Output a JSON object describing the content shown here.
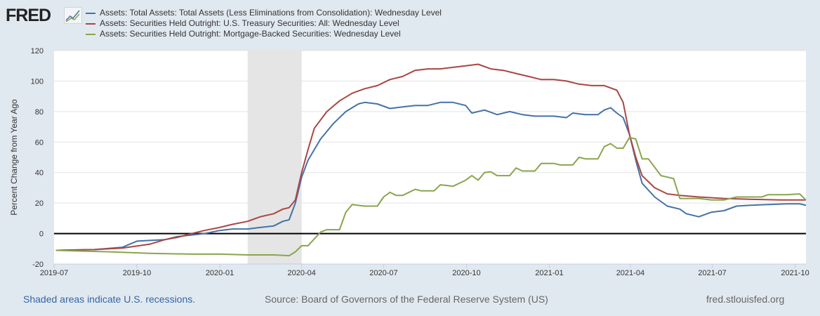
{
  "header": {
    "logo": "FRED"
  },
  "footer": {
    "recession_note": "Shaded areas indicate U.S. recessions.",
    "source": "Source: Board of Governors of the Federal Reserve System (US)",
    "site": "fred.stlouisfed.org"
  },
  "chart_data": {
    "type": "line",
    "title": "",
    "ylabel": "Percent Change from Year Ago",
    "xlabel": "",
    "ylim": [
      -20,
      120
    ],
    "yticks": [
      -20,
      0,
      20,
      40,
      60,
      80,
      100,
      120
    ],
    "xticks": [
      "2019-07",
      "2019-10",
      "2020-01",
      "2020-04",
      "2020-07",
      "2020-10",
      "2021-01",
      "2021-04",
      "2021-07",
      "2021-10"
    ],
    "xlim": [
      "2019-07-01",
      "2021-10-13"
    ],
    "grid": true,
    "legend_placement": "top",
    "recessions": [
      {
        "start": "2020-02-01",
        "end": "2020-04-01"
      }
    ],
    "series": [
      {
        "name": "Assets: Total Assets: Total Assets (Less Eliminations from Consolidation): Wednesday Level",
        "color": "#4572a7",
        "points": [
          [
            "2019-07-03",
            -11
          ],
          [
            "2019-08-15",
            -10.5
          ],
          [
            "2019-09-15",
            -9
          ],
          [
            "2019-10-01",
            -5
          ],
          [
            "2019-11-01",
            -4
          ],
          [
            "2019-11-15",
            -2
          ],
          [
            "2019-12-15",
            0
          ],
          [
            "2020-01-01",
            2
          ],
          [
            "2020-01-15",
            3
          ],
          [
            "2020-02-01",
            3
          ],
          [
            "2020-02-15",
            4
          ],
          [
            "2020-03-01",
            5
          ],
          [
            "2020-03-11",
            8
          ],
          [
            "2020-03-18",
            9
          ],
          [
            "2020-03-25",
            20
          ],
          [
            "2020-04-01",
            37
          ],
          [
            "2020-04-08",
            48
          ],
          [
            "2020-04-22",
            62
          ],
          [
            "2020-05-06",
            72
          ],
          [
            "2020-05-20",
            80
          ],
          [
            "2020-06-03",
            85
          ],
          [
            "2020-06-10",
            86
          ],
          [
            "2020-06-24",
            85
          ],
          [
            "2020-07-08",
            82
          ],
          [
            "2020-07-22",
            83
          ],
          [
            "2020-08-05",
            84
          ],
          [
            "2020-08-19",
            84
          ],
          [
            "2020-09-02",
            86
          ],
          [
            "2020-09-16",
            86
          ],
          [
            "2020-09-30",
            84
          ],
          [
            "2020-10-07",
            79
          ],
          [
            "2020-10-21",
            81
          ],
          [
            "2020-11-04",
            78
          ],
          [
            "2020-11-18",
            80
          ],
          [
            "2020-12-02",
            78
          ],
          [
            "2020-12-16",
            77
          ],
          [
            "2021-01-06",
            77
          ],
          [
            "2021-01-20",
            76
          ],
          [
            "2021-01-27",
            79
          ],
          [
            "2021-02-10",
            78
          ],
          [
            "2021-02-24",
            78
          ],
          [
            "2021-03-03",
            81
          ],
          [
            "2021-03-10",
            82.5
          ],
          [
            "2021-03-17",
            79
          ],
          [
            "2021-03-24",
            76
          ],
          [
            "2021-03-31",
            65
          ],
          [
            "2021-04-07",
            48
          ],
          [
            "2021-04-14",
            33
          ],
          [
            "2021-04-28",
            24
          ],
          [
            "2021-05-12",
            18
          ],
          [
            "2021-05-26",
            16
          ],
          [
            "2021-06-02",
            13
          ],
          [
            "2021-06-16",
            11
          ],
          [
            "2021-06-30",
            14
          ],
          [
            "2021-07-14",
            15
          ],
          [
            "2021-07-28",
            18
          ],
          [
            "2021-08-11",
            18.5
          ],
          [
            "2021-09-01",
            19
          ],
          [
            "2021-09-22",
            19.5
          ],
          [
            "2021-10-06",
            19.5
          ],
          [
            "2021-10-13",
            18.5
          ]
        ]
      },
      {
        "name": "Assets: Securities Held Outright: U.S. Treasury Securities: All: Wednesday Level",
        "color": "#aa4643",
        "points": [
          [
            "2019-07-03",
            -11
          ],
          [
            "2019-08-15",
            -10.5
          ],
          [
            "2019-09-15",
            -9.5
          ],
          [
            "2019-10-15",
            -7
          ],
          [
            "2019-11-01",
            -4
          ],
          [
            "2019-11-15",
            -2.5
          ],
          [
            "2019-12-01",
            0
          ],
          [
            "2019-12-15",
            2
          ],
          [
            "2020-01-01",
            4
          ],
          [
            "2020-01-15",
            6
          ],
          [
            "2020-02-01",
            8
          ],
          [
            "2020-02-15",
            11
          ],
          [
            "2020-03-01",
            13
          ],
          [
            "2020-03-11",
            16
          ],
          [
            "2020-03-18",
            17
          ],
          [
            "2020-03-25",
            22
          ],
          [
            "2020-04-01",
            40
          ],
          [
            "2020-04-08",
            55
          ],
          [
            "2020-04-15",
            69
          ],
          [
            "2020-04-29",
            80
          ],
          [
            "2020-05-13",
            87
          ],
          [
            "2020-05-27",
            92
          ],
          [
            "2020-06-10",
            95
          ],
          [
            "2020-06-24",
            97
          ],
          [
            "2020-07-08",
            101
          ],
          [
            "2020-07-22",
            103
          ],
          [
            "2020-08-05",
            107
          ],
          [
            "2020-08-19",
            108
          ],
          [
            "2020-09-02",
            108
          ],
          [
            "2020-09-16",
            109
          ],
          [
            "2020-09-30",
            110
          ],
          [
            "2020-10-14",
            111
          ],
          [
            "2020-10-28",
            108
          ],
          [
            "2020-11-11",
            107
          ],
          [
            "2020-11-25",
            105
          ],
          [
            "2020-12-09",
            103
          ],
          [
            "2020-12-23",
            101
          ],
          [
            "2021-01-06",
            101
          ],
          [
            "2021-01-20",
            100
          ],
          [
            "2021-02-03",
            98
          ],
          [
            "2021-02-17",
            97
          ],
          [
            "2021-03-03",
            97
          ],
          [
            "2021-03-17",
            94
          ],
          [
            "2021-03-24",
            86
          ],
          [
            "2021-03-31",
            65
          ],
          [
            "2021-04-07",
            50
          ],
          [
            "2021-04-14",
            38
          ],
          [
            "2021-04-28",
            30
          ],
          [
            "2021-05-12",
            26
          ],
          [
            "2021-05-26",
            25
          ],
          [
            "2021-06-16",
            24
          ],
          [
            "2021-07-14",
            23
          ],
          [
            "2021-08-11",
            22.5
          ],
          [
            "2021-09-15",
            22
          ],
          [
            "2021-10-13",
            22
          ]
        ]
      },
      {
        "name": "Assets: Securities Held Outright: Mortgage-Backed Securities: Wednesday Level",
        "color": "#89a54e",
        "points": [
          [
            "2019-07-03",
            -11
          ],
          [
            "2019-09-01",
            -12
          ],
          [
            "2019-10-15",
            -13
          ],
          [
            "2019-12-01",
            -13.5
          ],
          [
            "2020-01-01",
            -13.5
          ],
          [
            "2020-02-01",
            -14
          ],
          [
            "2020-03-01",
            -14
          ],
          [
            "2020-03-18",
            -14.5
          ],
          [
            "2020-03-25",
            -12
          ],
          [
            "2020-04-01",
            -8
          ],
          [
            "2020-04-08",
            -8
          ],
          [
            "2020-04-22",
            1
          ],
          [
            "2020-04-29",
            2.5
          ],
          [
            "2020-05-13",
            2.5
          ],
          [
            "2020-05-20",
            14
          ],
          [
            "2020-05-27",
            19
          ],
          [
            "2020-06-10",
            18
          ],
          [
            "2020-06-24",
            18
          ],
          [
            "2020-07-01",
            24
          ],
          [
            "2020-07-08",
            27
          ],
          [
            "2020-07-15",
            25
          ],
          [
            "2020-07-22",
            25
          ],
          [
            "2020-08-05",
            29
          ],
          [
            "2020-08-12",
            28
          ],
          [
            "2020-08-26",
            28
          ],
          [
            "2020-09-02",
            32
          ],
          [
            "2020-09-16",
            31
          ],
          [
            "2020-09-30",
            35
          ],
          [
            "2020-10-07",
            38
          ],
          [
            "2020-10-14",
            35
          ],
          [
            "2020-10-21",
            40
          ],
          [
            "2020-10-28",
            40.5
          ],
          [
            "2020-11-04",
            38
          ],
          [
            "2020-11-18",
            38
          ],
          [
            "2020-11-25",
            43
          ],
          [
            "2020-12-02",
            41
          ],
          [
            "2020-12-16",
            41
          ],
          [
            "2020-12-23",
            46
          ],
          [
            "2021-01-06",
            46
          ],
          [
            "2021-01-13",
            45
          ],
          [
            "2021-01-27",
            45
          ],
          [
            "2021-02-03",
            50
          ],
          [
            "2021-02-10",
            49
          ],
          [
            "2021-02-24",
            49
          ],
          [
            "2021-03-03",
            57
          ],
          [
            "2021-03-10",
            59
          ],
          [
            "2021-03-17",
            56
          ],
          [
            "2021-03-24",
            56
          ],
          [
            "2021-03-31",
            63
          ],
          [
            "2021-04-07",
            62
          ],
          [
            "2021-04-14",
            49
          ],
          [
            "2021-04-21",
            49
          ],
          [
            "2021-05-05",
            38
          ],
          [
            "2021-05-12",
            37
          ],
          [
            "2021-05-19",
            36
          ],
          [
            "2021-05-26",
            23
          ],
          [
            "2021-06-16",
            23
          ],
          [
            "2021-06-30",
            22
          ],
          [
            "2021-07-14",
            22
          ],
          [
            "2021-07-28",
            24
          ],
          [
            "2021-08-11",
            24
          ],
          [
            "2021-08-25",
            24
          ],
          [
            "2021-09-01",
            25.5
          ],
          [
            "2021-09-22",
            25.5
          ],
          [
            "2021-10-06",
            26
          ],
          [
            "2021-10-13",
            22
          ]
        ]
      }
    ]
  }
}
